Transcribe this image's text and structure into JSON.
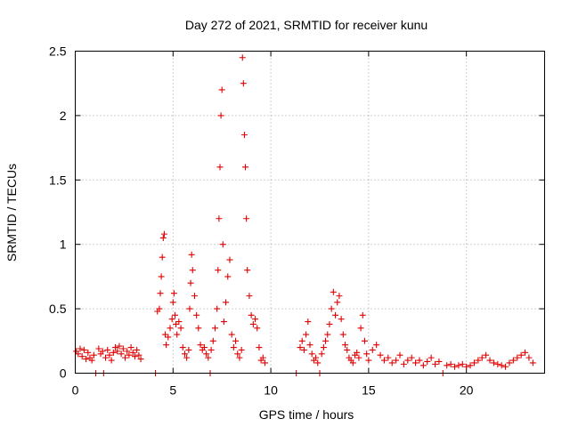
{
  "chart_data": {
    "type": "scatter",
    "title": "Day 272 of 2021, SRMTID for receiver kunu",
    "xlabel": "GPS time / hours",
    "ylabel": "SRMTID / TECUs",
    "xlim": [
      0,
      24
    ],
    "ylim": [
      0,
      2.5
    ],
    "xticks": [
      0,
      5,
      10,
      15,
      20
    ],
    "xtick_labels": [
      "0",
      "5",
      "10",
      "15",
      "20"
    ],
    "yticks": [
      0,
      0.5,
      1,
      1.5,
      2,
      2.5
    ],
    "ytick_labels": [
      "0",
      "0.5",
      "1",
      "1.5",
      "2",
      "2.5"
    ],
    "grid": true,
    "marker": "plus",
    "series": [
      {
        "name": "SRMTID",
        "color": "#e00000",
        "points": [
          [
            0.05,
            0.17
          ],
          [
            0.15,
            0.15
          ],
          [
            0.25,
            0.19
          ],
          [
            0.35,
            0.13
          ],
          [
            0.45,
            0.18
          ],
          [
            0.55,
            0.11
          ],
          [
            0.65,
            0.16
          ],
          [
            0.75,
            0.12
          ],
          [
            0.85,
            0.1
          ],
          [
            0.95,
            0.14
          ],
          [
            1.05,
            0.0
          ],
          [
            1.2,
            0.19
          ],
          [
            1.3,
            0.15
          ],
          [
            1.4,
            0.17
          ],
          [
            1.45,
            0.0
          ],
          [
            1.55,
            0.12
          ],
          [
            1.65,
            0.18
          ],
          [
            1.75,
            0.14
          ],
          [
            1.85,
            0.1
          ],
          [
            1.95,
            0.16
          ],
          [
            2.05,
            0.2
          ],
          [
            2.15,
            0.17
          ],
          [
            2.25,
            0.21
          ],
          [
            2.35,
            0.15
          ],
          [
            2.45,
            0.19
          ],
          [
            2.55,
            0.12
          ],
          [
            2.65,
            0.17
          ],
          [
            2.75,
            0.14
          ],
          [
            2.85,
            0.2
          ],
          [
            2.95,
            0.16
          ],
          [
            3.05,
            0.13
          ],
          [
            3.15,
            0.18
          ],
          [
            3.25,
            0.14
          ],
          [
            3.35,
            0.11
          ],
          [
            4.1,
            0.0
          ],
          [
            4.2,
            0.48
          ],
          [
            4.3,
            0.5
          ],
          [
            4.35,
            0.62
          ],
          [
            4.4,
            0.75
          ],
          [
            4.45,
            0.9
          ],
          [
            4.5,
            1.05
          ],
          [
            4.55,
            1.08
          ],
          [
            4.6,
            0.3
          ],
          [
            4.65,
            0.22
          ],
          [
            4.75,
            0.28
          ],
          [
            4.85,
            0.35
          ],
          [
            4.95,
            0.42
          ],
          [
            5.0,
            0.55
          ],
          [
            5.05,
            0.62
          ],
          [
            5.1,
            0.45
          ],
          [
            5.15,
            0.38
          ],
          [
            5.2,
            0.3
          ],
          [
            5.3,
            0.4
          ],
          [
            5.4,
            0.35
          ],
          [
            5.5,
            0.2
          ],
          [
            5.6,
            0.15
          ],
          [
            5.7,
            0.12
          ],
          [
            5.8,
            0.18
          ],
          [
            5.85,
            0.5
          ],
          [
            5.9,
            0.7
          ],
          [
            5.95,
            0.92
          ],
          [
            6.0,
            0.8
          ],
          [
            6.1,
            0.6
          ],
          [
            6.2,
            0.45
          ],
          [
            6.3,
            0.35
          ],
          [
            6.4,
            0.22
          ],
          [
            6.5,
            0.18
          ],
          [
            6.6,
            0.2
          ],
          [
            6.7,
            0.15
          ],
          [
            6.8,
            0.12
          ],
          [
            6.9,
            0.0
          ],
          [
            6.95,
            0.18
          ],
          [
            7.05,
            0.25
          ],
          [
            7.15,
            0.35
          ],
          [
            7.25,
            0.5
          ],
          [
            7.3,
            0.8
          ],
          [
            7.35,
            1.2
          ],
          [
            7.4,
            1.6
          ],
          [
            7.45,
            2.0
          ],
          [
            7.5,
            2.2
          ],
          [
            7.55,
            1.0
          ],
          [
            7.6,
            0.4
          ],
          [
            7.7,
            0.55
          ],
          [
            7.8,
            0.75
          ],
          [
            7.9,
            0.88
          ],
          [
            8.0,
            0.3
          ],
          [
            8.1,
            0.2
          ],
          [
            8.2,
            0.25
          ],
          [
            8.3,
            0.15
          ],
          [
            8.4,
            0.12
          ],
          [
            8.5,
            0.18
          ],
          [
            8.55,
            2.45
          ],
          [
            8.6,
            2.25
          ],
          [
            8.65,
            1.85
          ],
          [
            8.7,
            1.6
          ],
          [
            8.75,
            1.2
          ],
          [
            8.8,
            0.8
          ],
          [
            8.9,
            0.6
          ],
          [
            9.0,
            0.45
          ],
          [
            9.1,
            0.38
          ],
          [
            9.2,
            0.42
          ],
          [
            9.3,
            0.35
          ],
          [
            9.4,
            0.2
          ],
          [
            9.5,
            0.1
          ],
          [
            9.6,
            0.12
          ],
          [
            9.7,
            0.08
          ],
          [
            11.3,
            0.0
          ],
          [
            11.5,
            0.2
          ],
          [
            11.6,
            0.25
          ],
          [
            11.7,
            0.18
          ],
          [
            11.8,
            0.3
          ],
          [
            11.9,
            0.4
          ],
          [
            12.0,
            0.22
          ],
          [
            12.1,
            0.15
          ],
          [
            12.2,
            0.1
          ],
          [
            12.3,
            0.12
          ],
          [
            12.4,
            0.08
          ],
          [
            12.5,
            0.0
          ],
          [
            12.6,
            0.15
          ],
          [
            12.7,
            0.2
          ],
          [
            12.8,
            0.25
          ],
          [
            12.9,
            0.3
          ],
          [
            13.0,
            0.38
          ],
          [
            13.1,
            0.5
          ],
          [
            13.2,
            0.63
          ],
          [
            13.3,
            0.45
          ],
          [
            13.4,
            0.55
          ],
          [
            13.5,
            0.6
          ],
          [
            13.6,
            0.42
          ],
          [
            13.7,
            0.3
          ],
          [
            13.8,
            0.22
          ],
          [
            13.9,
            0.18
          ],
          [
            14.0,
            0.12
          ],
          [
            14.1,
            0.1
          ],
          [
            14.2,
            0.08
          ],
          [
            14.3,
            0.14
          ],
          [
            14.4,
            0.16
          ],
          [
            14.5,
            0.12
          ],
          [
            14.6,
            0.35
          ],
          [
            14.7,
            0.45
          ],
          [
            14.8,
            0.25
          ],
          [
            14.9,
            0.15
          ],
          [
            15.0,
            0.1
          ],
          [
            15.2,
            0.18
          ],
          [
            15.4,
            0.22
          ],
          [
            15.6,
            0.14
          ],
          [
            15.8,
            0.1
          ],
          [
            16.0,
            0.12
          ],
          [
            16.2,
            0.08
          ],
          [
            16.4,
            0.1
          ],
          [
            16.6,
            0.14
          ],
          [
            16.8,
            0.07
          ],
          [
            17.0,
            0.1
          ],
          [
            17.2,
            0.12
          ],
          [
            17.4,
            0.08
          ],
          [
            17.6,
            0.1
          ],
          [
            17.8,
            0.06
          ],
          [
            18.0,
            0.09
          ],
          [
            18.2,
            0.12
          ],
          [
            18.4,
            0.07
          ],
          [
            18.6,
            0.09
          ],
          [
            18.8,
            0.0
          ],
          [
            19.0,
            0.06
          ],
          [
            19.2,
            0.07
          ],
          [
            19.4,
            0.05
          ],
          [
            19.6,
            0.06
          ],
          [
            19.8,
            0.07
          ],
          [
            20.0,
            0.05
          ],
          [
            20.2,
            0.06
          ],
          [
            20.4,
            0.08
          ],
          [
            20.6,
            0.1
          ],
          [
            20.8,
            0.12
          ],
          [
            21.0,
            0.14
          ],
          [
            21.2,
            0.1
          ],
          [
            21.4,
            0.08
          ],
          [
            21.6,
            0.07
          ],
          [
            21.8,
            0.06
          ],
          [
            22.0,
            0.05
          ],
          [
            22.2,
            0.08
          ],
          [
            22.4,
            0.1
          ],
          [
            22.6,
            0.12
          ],
          [
            22.8,
            0.14
          ],
          [
            23.0,
            0.16
          ],
          [
            23.2,
            0.12
          ],
          [
            23.4,
            0.08
          ]
        ]
      }
    ]
  }
}
